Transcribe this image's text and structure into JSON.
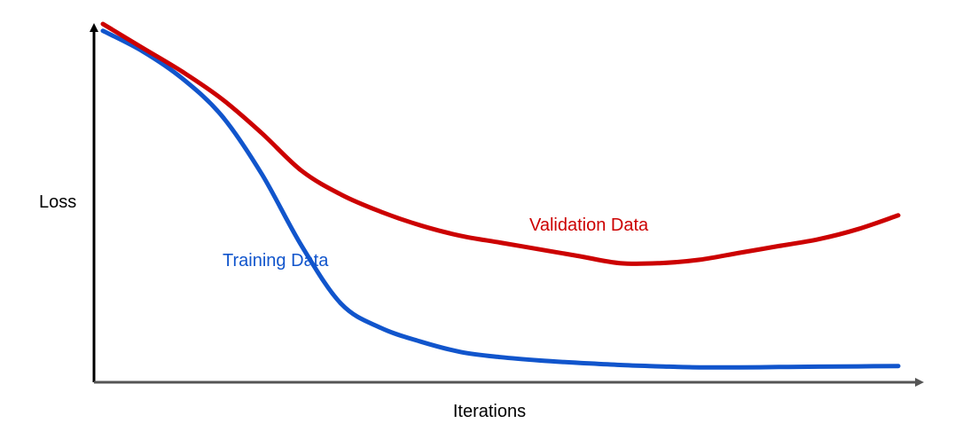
{
  "chart_data": {
    "type": "line",
    "title": "",
    "xlabel": "Iterations",
    "ylabel": "Loss",
    "grid": false,
    "legend": "none",
    "x": [
      0,
      1,
      2,
      3,
      4,
      5,
      6,
      7,
      8,
      9,
      10,
      11,
      12,
      13,
      14,
      15,
      16,
      17,
      18,
      19,
      20
    ],
    "series": [
      {
        "name": "Training Data",
        "color": "#1155cc",
        "values": [
          1.0,
          0.94,
          0.86,
          0.75,
          0.58,
          0.37,
          0.2,
          0.13,
          0.09,
          0.06,
          0.045,
          0.035,
          0.028,
          0.022,
          0.018,
          0.015,
          0.015,
          0.016,
          0.017,
          0.018,
          0.019
        ]
      },
      {
        "name": "Validation Data",
        "color": "#cc0000",
        "values": [
          1.02,
          0.95,
          0.88,
          0.8,
          0.7,
          0.59,
          0.52,
          0.47,
          0.43,
          0.4,
          0.38,
          0.36,
          0.34,
          0.32,
          0.32,
          0.33,
          0.35,
          0.37,
          0.39,
          0.42,
          0.46
        ]
      }
    ]
  }
}
